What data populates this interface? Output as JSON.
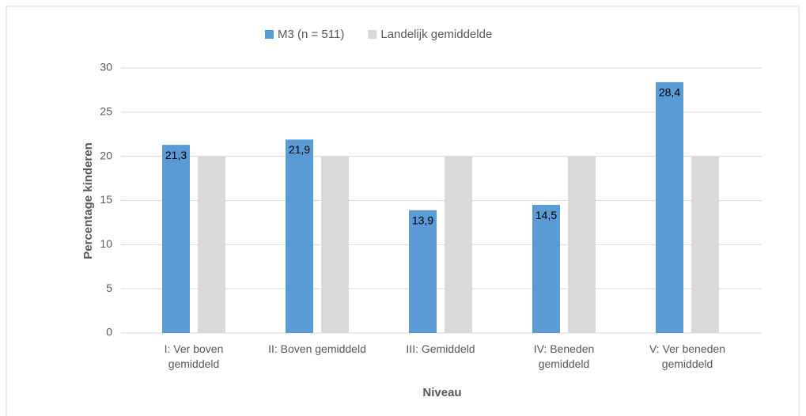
{
  "chart_data": {
    "type": "bar",
    "categories": [
      "I: Ver boven gemiddeld",
      "II: Boven gemiddeld",
      "III: Gemiddeld",
      "IV: Beneden gemiddeld",
      "V: Ver beneden gemiddeld"
    ],
    "series": [
      {
        "name": "M3 (n = 511)",
        "color": "#5b9bd5",
        "values": [
          21.3,
          21.9,
          13.9,
          14.5,
          28.4
        ],
        "value_labels": [
          "21,3",
          "21,9",
          "13,9",
          "14,5",
          "28,4"
        ]
      },
      {
        "name": "Landelijk gemiddelde",
        "color": "#d9d9d9",
        "values": [
          20,
          20,
          20,
          20,
          20
        ]
      }
    ],
    "ylim": [
      0,
      30
    ],
    "yticks": [
      0,
      5,
      10,
      15,
      20,
      25,
      30
    ],
    "grid": true,
    "x_label": "Niveau",
    "y_label": "Percentage kinderen",
    "legend": "top"
  }
}
